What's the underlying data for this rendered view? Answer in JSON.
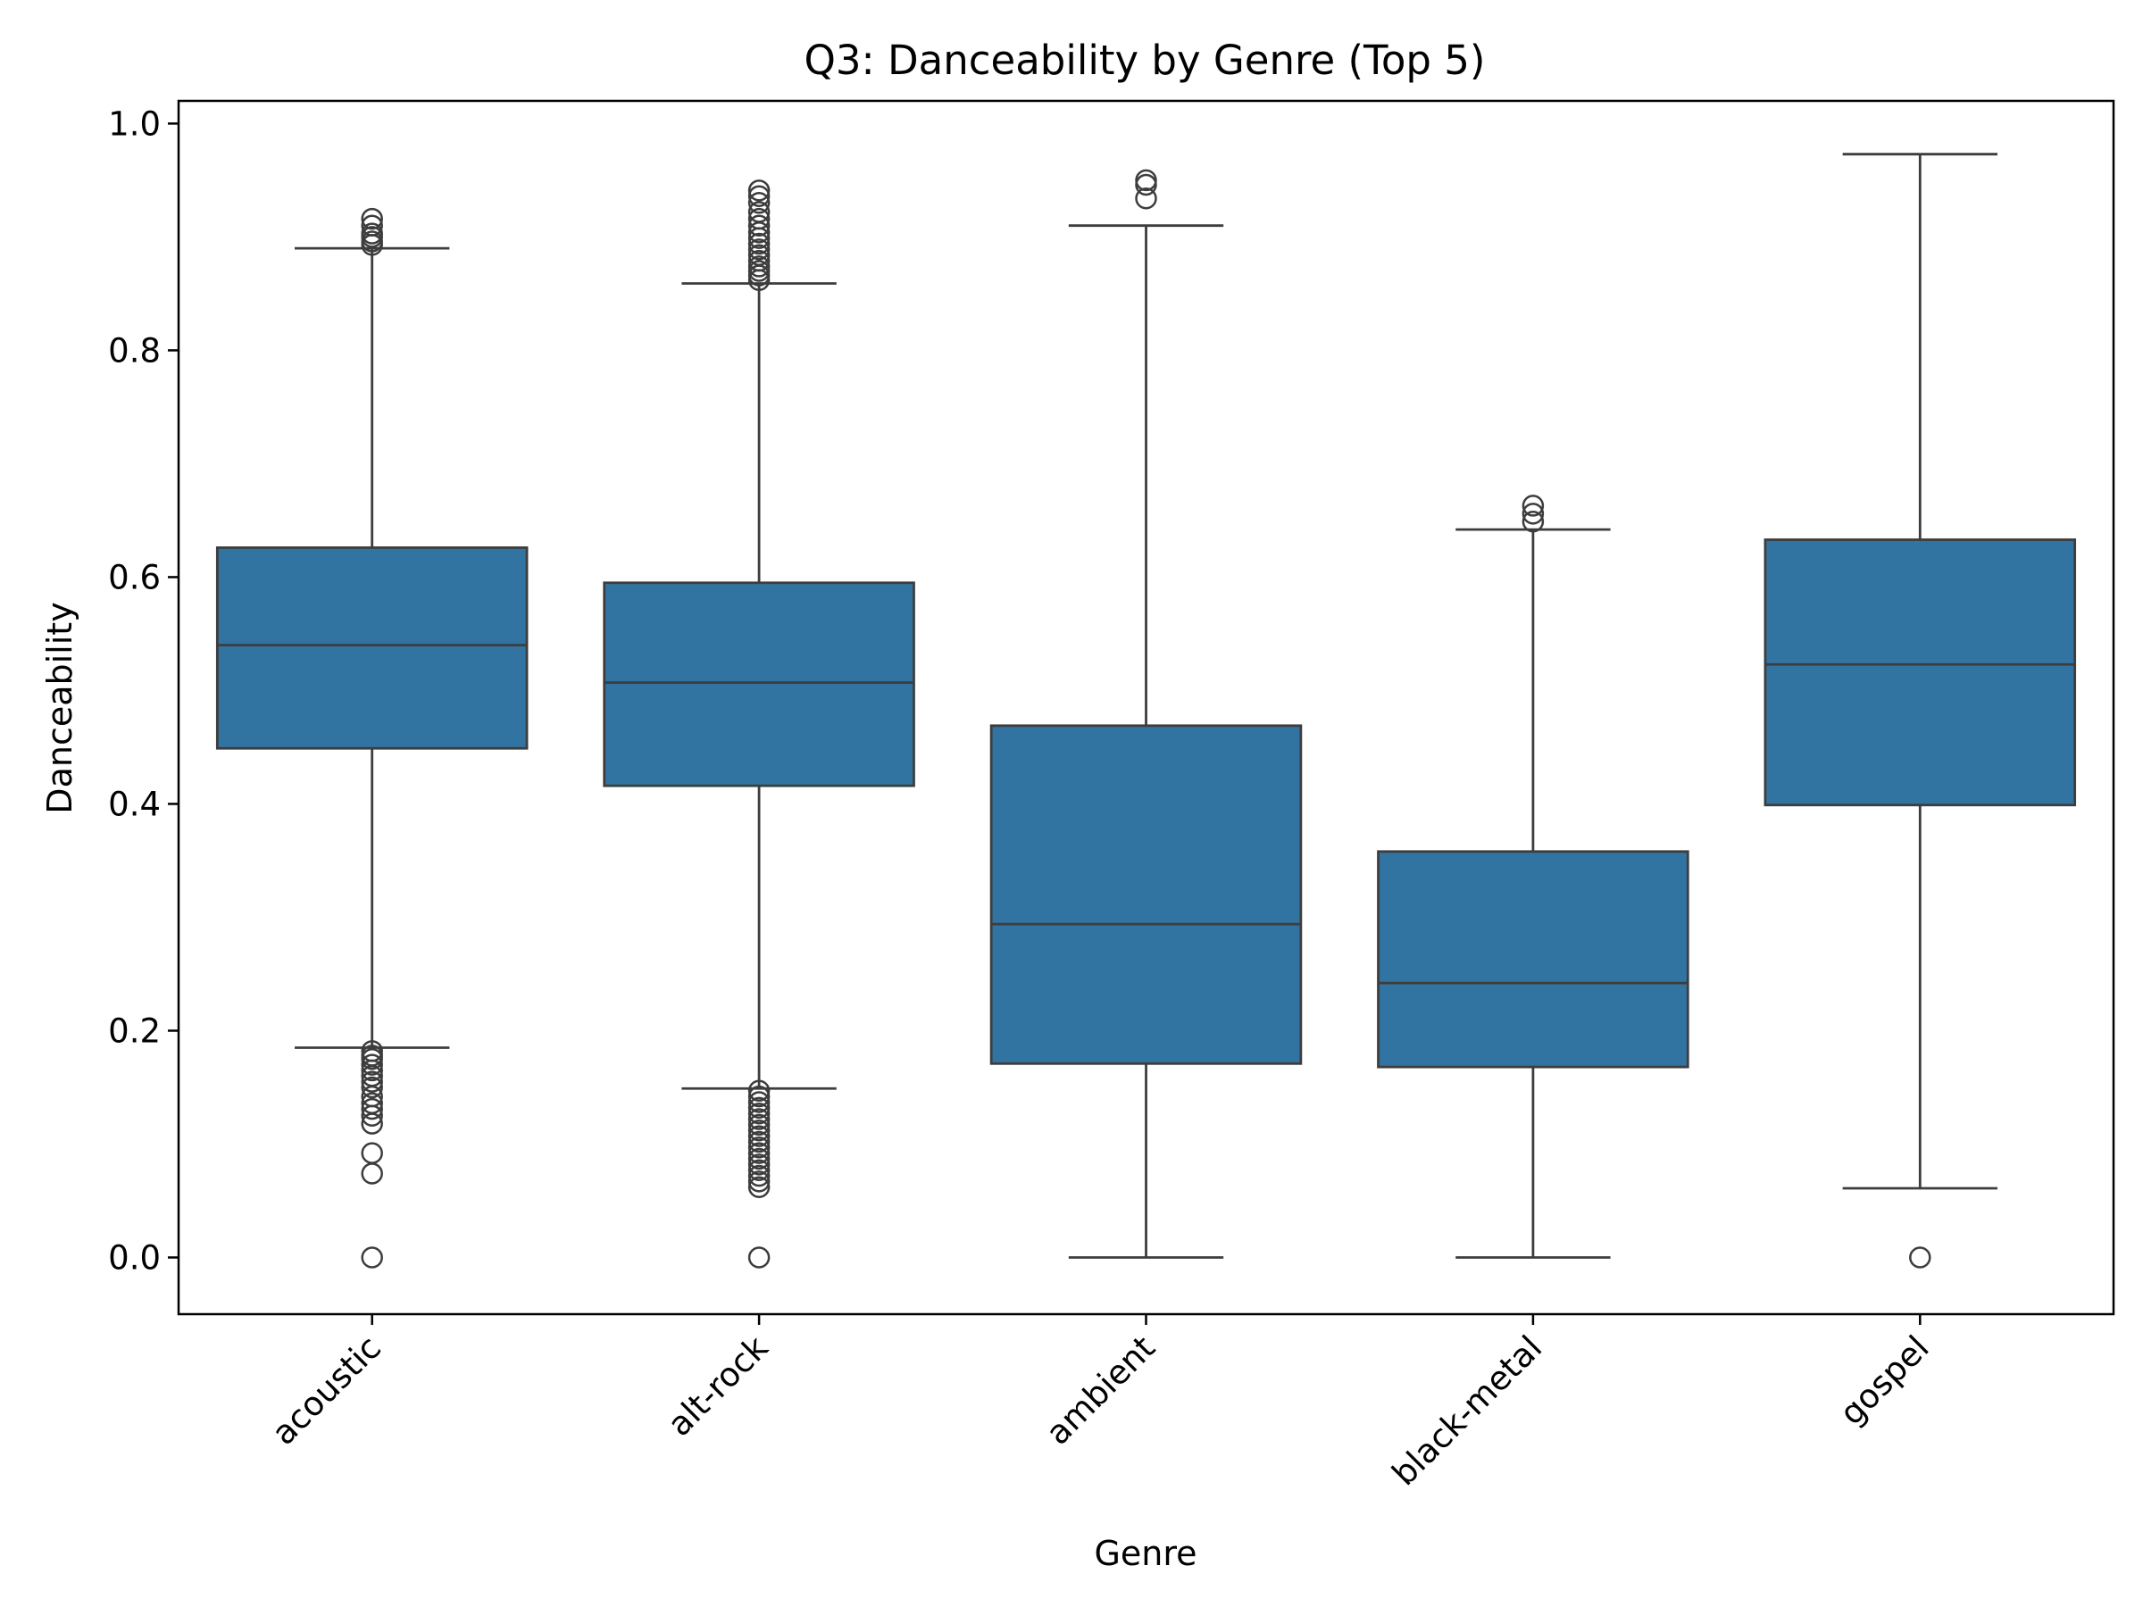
{
  "chart_data": {
    "type": "box",
    "title": "Q3: Danceability by Genre (Top 5)",
    "xlabel": "Genre",
    "ylabel": "Danceability",
    "ylim": [
      -0.05,
      1.02
    ],
    "yticks": [
      "0.0",
      "0.2",
      "0.4",
      "0.6",
      "0.8",
      "1.0"
    ],
    "categories": [
      "acoustic",
      "alt-rock",
      "ambient",
      "black-metal",
      "gospel"
    ],
    "box_color": "#3274a1",
    "line_color": "#3d3d3d",
    "grid": false,
    "boxes": [
      {
        "category": "acoustic",
        "whisker_low": 0.185,
        "q1": 0.449,
        "median": 0.54,
        "q3": 0.626,
        "whisker_high": 0.89,
        "outliers": [
          0.0,
          0.074,
          0.092,
          0.118,
          0.125,
          0.131,
          0.136,
          0.142,
          0.15,
          0.155,
          0.16,
          0.165,
          0.17,
          0.175,
          0.178,
          0.182,
          0.893,
          0.896,
          0.9,
          0.903,
          0.91,
          0.916
        ]
      },
      {
        "category": "alt-rock",
        "whisker_low": 0.149,
        "q1": 0.416,
        "median": 0.507,
        "q3": 0.595,
        "whisker_high": 0.859,
        "outliers": [
          0.0,
          0.062,
          0.067,
          0.072,
          0.077,
          0.082,
          0.087,
          0.092,
          0.097,
          0.102,
          0.107,
          0.112,
          0.117,
          0.122,
          0.127,
          0.132,
          0.137,
          0.142,
          0.147,
          0.862,
          0.866,
          0.87,
          0.874,
          0.879,
          0.884,
          0.889,
          0.894,
          0.899,
          0.904,
          0.91,
          0.916,
          0.922,
          0.93,
          0.936,
          0.941
        ]
      },
      {
        "category": "ambient",
        "whisker_low": 0.0,
        "q1": 0.171,
        "median": 0.294,
        "q3": 0.469,
        "whisker_high": 0.91,
        "outliers": [
          0.934,
          0.946,
          0.95
        ]
      },
      {
        "category": "black-metal",
        "whisker_low": 0.0,
        "q1": 0.168,
        "median": 0.242,
        "q3": 0.358,
        "whisker_high": 0.642,
        "outliers": [
          0.649,
          0.656,
          0.663
        ]
      },
      {
        "category": "gospel",
        "whisker_low": 0.061,
        "q1": 0.399,
        "median": 0.523,
        "q3": 0.633,
        "whisker_high": 0.973,
        "outliers": [
          0.0
        ]
      }
    ]
  }
}
